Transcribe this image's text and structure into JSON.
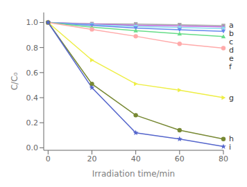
{
  "chart_data": {
    "type": "line",
    "x": [
      0,
      20,
      40,
      60,
      80
    ],
    "series": [
      {
        "name": "a",
        "color": "#aaaaaa",
        "marker": "square",
        "values": [
          1.0,
          0.99,
          0.988,
          0.982,
          0.975
        ]
      },
      {
        "name": "b",
        "color": "#bb66dd",
        "marker": "triangle-up",
        "values": [
          1.0,
          0.988,
          0.978,
          0.972,
          0.965
        ]
      },
      {
        "name": "c",
        "color": "#88ddee",
        "marker": "triangle-down",
        "values": [
          1.0,
          0.982,
          0.968,
          0.96,
          0.952
        ]
      },
      {
        "name": "d",
        "color": "#6688ee",
        "marker": "triangle-down",
        "values": [
          1.0,
          0.976,
          0.955,
          0.942,
          0.93
        ]
      },
      {
        "name": "e",
        "color": "#66dd88",
        "marker": "triangle-up",
        "values": [
          1.0,
          0.962,
          0.935,
          0.91,
          0.888
        ]
      },
      {
        "name": "f",
        "color": "#ffaaaa",
        "marker": "circle",
        "values": [
          1.0,
          0.945,
          0.89,
          0.83,
          0.795
        ]
      },
      {
        "name": "g",
        "color": "#eeee44",
        "marker": "triangle-right",
        "values": [
          1.0,
          0.7,
          0.51,
          0.46,
          0.4
        ]
      },
      {
        "name": "h",
        "color": "#778833",
        "marker": "circle",
        "values": [
          1.0,
          0.51,
          0.26,
          0.14,
          0.07
        ]
      },
      {
        "name": "i",
        "color": "#5566cc",
        "marker": "star",
        "values": [
          1.0,
          0.48,
          0.12,
          0.07,
          0.01
        ]
      }
    ],
    "xlabel": "Irradiation time/min",
    "ylabel": "C/C₀",
    "xlim": [
      -2,
      80
    ],
    "ylim": [
      -0.02,
      1.08
    ],
    "xticks": [
      0,
      20,
      40,
      60,
      80
    ],
    "yticks": [
      {
        "value": 0,
        "label": "0.0"
      },
      0.2,
      0.4,
      0.6,
      0.8,
      {
        "value": 1,
        "label": "1.0"
      }
    ],
    "grid": false
  }
}
